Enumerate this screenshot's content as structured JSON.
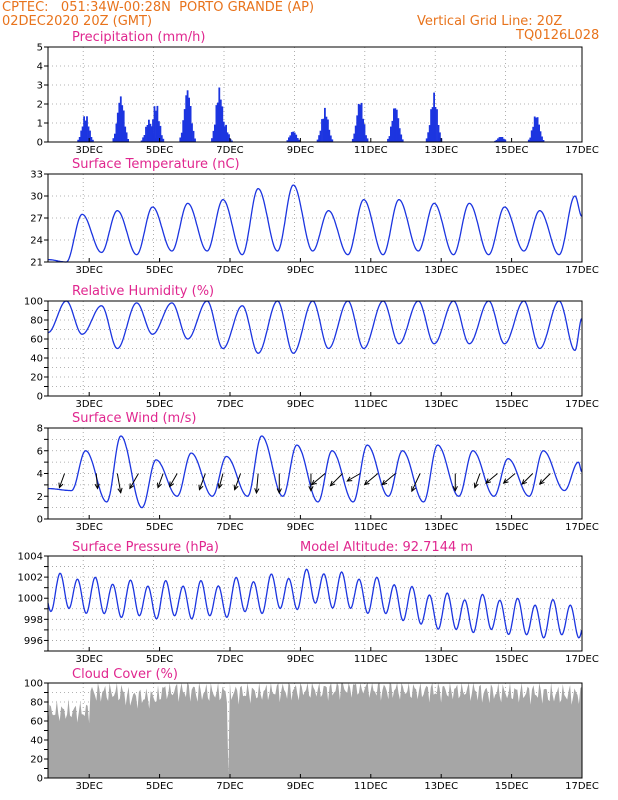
{
  "header": {
    "line1": "CPTEC:   051:34W-00:28N  PORTO GRANDE (AP)",
    "line2": "02DEC2020 20Z (GMT)",
    "grid_note": "Vertical Grid Line: 20Z",
    "code": "TQ0126L028"
  },
  "colors": {
    "header": "#e8731c",
    "title": "#e0278f",
    "series": "#1c35e0",
    "bars": "#1c35e0",
    "cloud": "#a6a6a6"
  },
  "x_ticks": [
    "3DEC",
    "5DEC",
    "7DEC",
    "9DEC",
    "11DEC",
    "13DEC",
    "15DEC",
    "17DEC"
  ],
  "chart_data": [
    {
      "id": "precipitation",
      "type": "bar",
      "title": "Precipitation (mm/h)",
      "ylim": [
        0,
        5
      ],
      "yticks": [
        0,
        1,
        2,
        3,
        4,
        5
      ],
      "x_unit": "day-of-december",
      "bursts": [
        {
          "day": 2.9,
          "peak": 1.5
        },
        {
          "day": 3.9,
          "peak": 2.5
        },
        {
          "day": 4.7,
          "peak": 1.2
        },
        {
          "day": 4.9,
          "peak": 2.1
        },
        {
          "day": 5.8,
          "peak": 2.9
        },
        {
          "day": 6.7,
          "peak": 2.9
        },
        {
          "day": 6.85,
          "peak": 1.0
        },
        {
          "day": 8.8,
          "peak": 0.6
        },
        {
          "day": 9.7,
          "peak": 1.8
        },
        {
          "day": 10.7,
          "peak": 2.3
        },
        {
          "day": 11.7,
          "peak": 2.0
        },
        {
          "day": 12.8,
          "peak": 2.6
        },
        {
          "day": 14.7,
          "peak": 0.3
        },
        {
          "day": 15.7,
          "peak": 1.5
        }
      ]
    },
    {
      "id": "temperature",
      "type": "line",
      "title": "Surface Temperature (nC)",
      "ylim": [
        21,
        33
      ],
      "yticks": [
        21,
        24,
        27,
        30,
        33
      ],
      "daily_max": [
        27.5,
        28.0,
        28.5,
        29.0,
        29.5,
        31.0,
        31.5,
        28.0,
        29.5,
        29.5,
        29.0,
        29.0,
        28.5,
        28.0,
        30.0
      ],
      "daily_min": [
        21.0,
        22.3,
        22.0,
        22.5,
        22.5,
        22.0,
        22.5,
        22.5,
        22.0,
        22.0,
        22.5,
        22.0,
        22.0,
        22.5,
        22.0
      ]
    },
    {
      "id": "humidity",
      "type": "line",
      "title": "Relative Humidity (%)",
      "ylim": [
        0,
        100
      ],
      "yticks": [
        0,
        10,
        20,
        30,
        40,
        50,
        60,
        70,
        80,
        90,
        100
      ],
      "ytick_labels": [
        0,
        20,
        40,
        60,
        80,
        100
      ],
      "daily_max": [
        100,
        95,
        98,
        98,
        100,
        95,
        100,
        100,
        100,
        100,
        100,
        100,
        100,
        100,
        100
      ],
      "daily_min": [
        65,
        50,
        65,
        60,
        50,
        45,
        45,
        50,
        50,
        55,
        55,
        55,
        55,
        50,
        48
      ]
    },
    {
      "id": "wind",
      "type": "line",
      "title": "Surface Wind (m/s)",
      "ylim": [
        0,
        8
      ],
      "yticks": [
        0,
        1,
        2,
        3,
        4,
        5,
        6,
        7,
        8
      ],
      "ytick_labels": [
        0,
        2,
        4,
        6,
        8
      ],
      "daily_max": [
        6.0,
        7.3,
        5.2,
        5.8,
        5.5,
        7.3,
        6.5,
        6.0,
        6.5,
        6.0,
        6.5,
        6.0,
        5.3,
        6.0,
        5.0
      ],
      "daily_min": [
        2.5,
        1.5,
        1.0,
        2.0,
        2.0,
        2.0,
        2.0,
        1.5,
        1.5,
        2.0,
        1.5,
        2.0,
        2.0,
        2.0,
        2.5
      ],
      "arrows": [
        {
          "day": 2.3,
          "speed": 2.0,
          "toward_deg": 200
        },
        {
          "day": 3.2,
          "speed": 2.0,
          "toward_deg": 175
        },
        {
          "day": 3.8,
          "speed": 3.0,
          "toward_deg": 170
        },
        {
          "day": 4.4,
          "speed": 2.5,
          "toward_deg": 210
        },
        {
          "day": 5.1,
          "speed": 2.0,
          "toward_deg": 200
        },
        {
          "day": 5.5,
          "speed": 2.0,
          "toward_deg": 210
        },
        {
          "day": 6.3,
          "speed": 2.5,
          "toward_deg": 200
        },
        {
          "day": 6.8,
          "speed": 2.0,
          "toward_deg": 195
        },
        {
          "day": 7.3,
          "speed": 2.5,
          "toward_deg": 200
        },
        {
          "day": 7.8,
          "speed": 3.0,
          "toward_deg": 185
        },
        {
          "day": 8.4,
          "speed": 3.0,
          "toward_deg": 180
        },
        {
          "day": 9.3,
          "speed": 2.5,
          "toward_deg": 180
        },
        {
          "day": 9.7,
          "speed": 2.5,
          "toward_deg": 230
        },
        {
          "day": 10.2,
          "speed": 2.5,
          "toward_deg": 225
        },
        {
          "day": 10.7,
          "speed": 2.0,
          "toward_deg": 240
        },
        {
          "day": 11.2,
          "speed": 2.5,
          "toward_deg": 230
        },
        {
          "day": 11.7,
          "speed": 2.5,
          "toward_deg": 230
        },
        {
          "day": 12.4,
          "speed": 3.0,
          "toward_deg": 205
        },
        {
          "day": 13.4,
          "speed": 2.5,
          "toward_deg": 180
        },
        {
          "day": 14.1,
          "speed": 2.0,
          "toward_deg": 200
        },
        {
          "day": 14.6,
          "speed": 2.0,
          "toward_deg": 230
        },
        {
          "day": 15.1,
          "speed": 2.0,
          "toward_deg": 230
        },
        {
          "day": 15.6,
          "speed": 2.0,
          "toward_deg": 225
        },
        {
          "day": 16.1,
          "speed": 2.0,
          "toward_deg": 225
        }
      ]
    },
    {
      "id": "pressure",
      "type": "line",
      "title": "Surface Pressure (hPa)",
      "subtitle": "Model Altitude: 92.7144 m",
      "ylim": [
        995,
        1004
      ],
      "yticks": [
        995,
        996,
        997,
        998,
        999,
        1000,
        1001,
        1002,
        1003,
        1004
      ],
      "ytick_labels": [
        996,
        998,
        1000,
        1002,
        1004
      ],
      "daily_mean": [
        1000.5,
        1000.0,
        999.8,
        999.8,
        999.8,
        1000.2,
        1000.5,
        1001.0,
        1000.5,
        1000.0,
        999.0,
        998.5,
        998.5,
        998.0,
        998.0
      ],
      "semidiurnal_amplitude": 1.6
    },
    {
      "id": "cloud",
      "type": "area",
      "title": "Cloud Cover (%)",
      "ylim": [
        0,
        100
      ],
      "yticks": [
        0,
        10,
        20,
        30,
        40,
        50,
        60,
        70,
        80,
        90,
        100
      ],
      "ytick_labels": [
        0,
        20,
        40,
        60,
        80,
        100
      ],
      "daily_base": [
        70,
        90,
        85,
        92,
        90,
        90,
        92,
        93,
        95,
        93,
        92,
        92,
        90,
        90,
        88
      ]
    }
  ]
}
